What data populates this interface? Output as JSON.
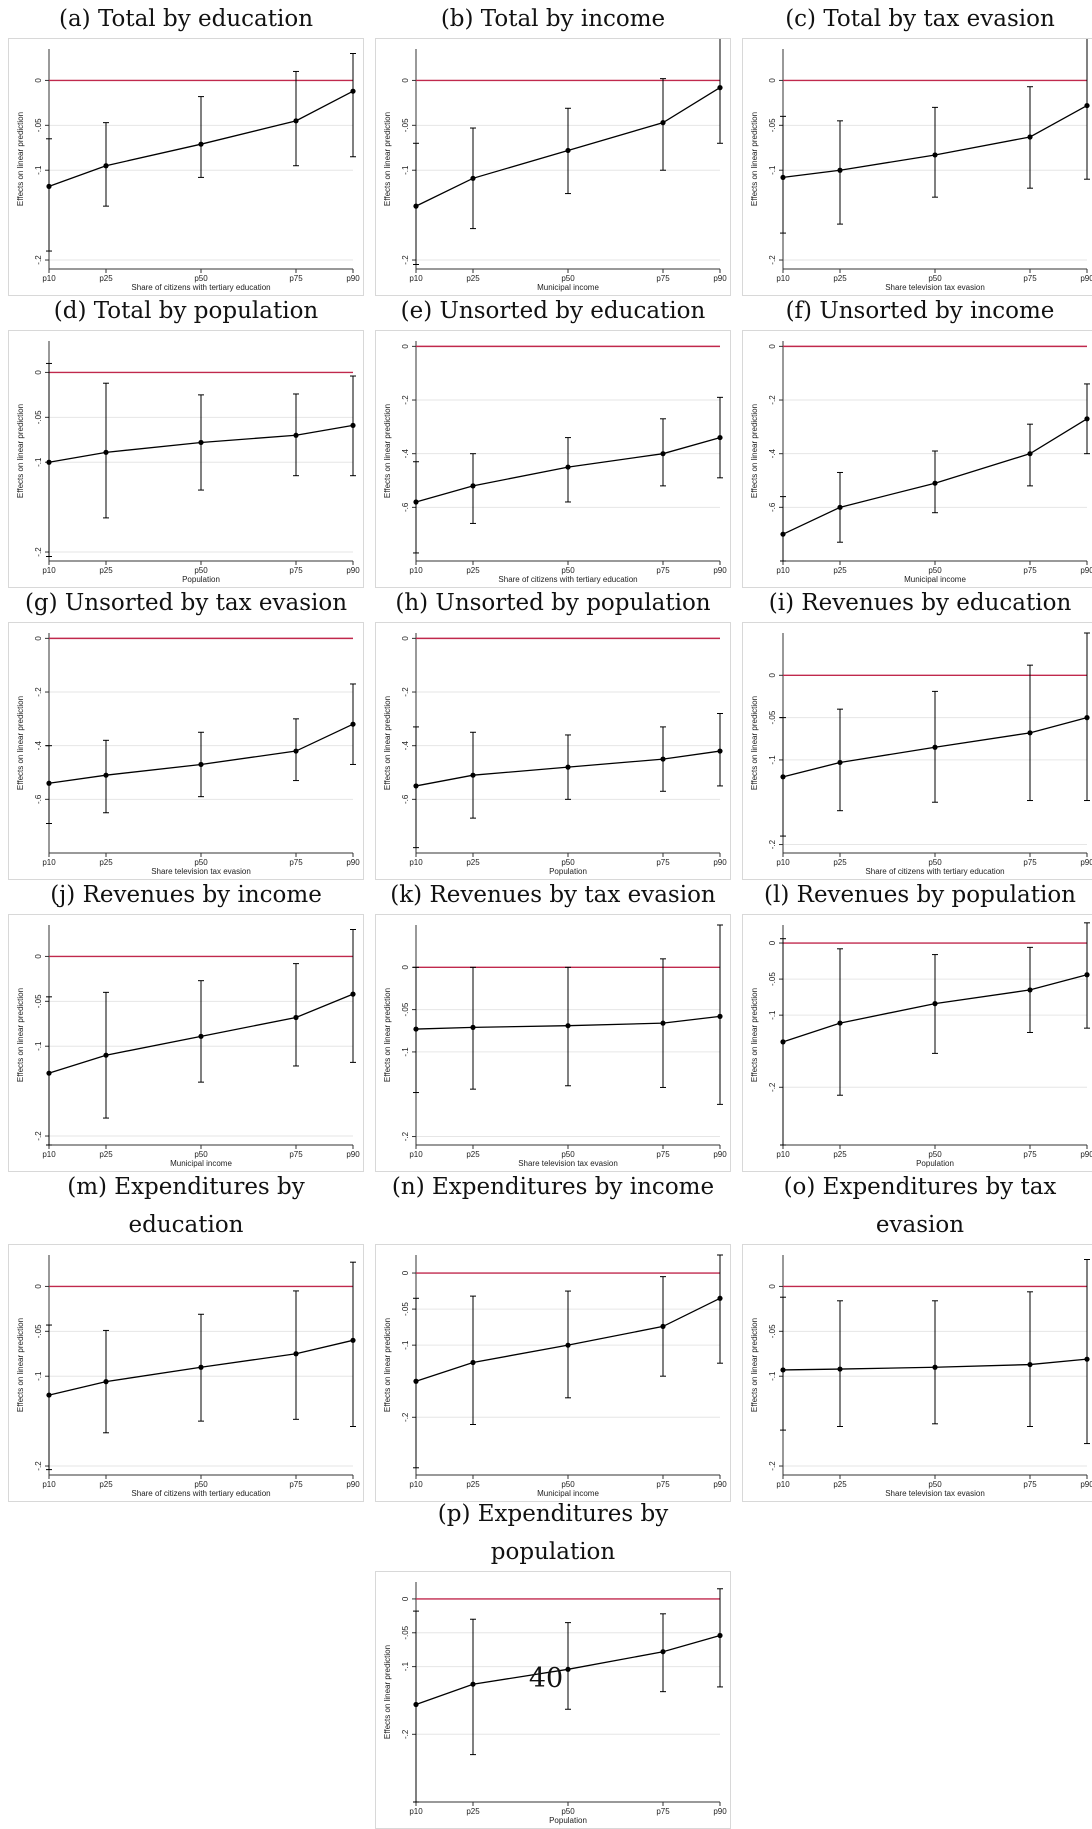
{
  "page_number": "40",
  "colors": {
    "reference_line": "#c0294d",
    "series": "#000000",
    "grid": "#e6e6e6",
    "frame_border": "#d8d8d8"
  },
  "chart_data": [
    {
      "type": "line",
      "caption_lines": [
        "(a) Total by education"
      ],
      "ylabel": "Effects on linear prediction",
      "xlabel": "Share of citizens with tertiary education",
      "x_ticks": [
        "p10",
        "p25",
        "p50",
        "p75",
        "p90"
      ],
      "y_ticks": [
        {
          "v": 0,
          "l": "0"
        },
        {
          "v": -0.05,
          "l": "-.05"
        },
        {
          "v": -0.1,
          "l": "-.1"
        },
        {
          "v": -0.2,
          "l": "-.2"
        }
      ],
      "ylim": [
        -0.21,
        0.035
      ],
      "points": [
        {
          "x": "p10",
          "y": -0.118,
          "lo": -0.19,
          "hi": -0.065
        },
        {
          "x": "p25",
          "y": -0.095,
          "lo": -0.14,
          "hi": -0.047
        },
        {
          "x": "p50",
          "y": -0.071,
          "lo": -0.108,
          "hi": -0.018
        },
        {
          "x": "p75",
          "y": -0.045,
          "lo": -0.095,
          "hi": 0.01
        },
        {
          "x": "p90",
          "y": -0.012,
          "lo": -0.085,
          "hi": 0.03
        }
      ]
    },
    {
      "type": "line",
      "caption_lines": [
        "(b) Total by income"
      ],
      "ylabel": "Effects on linear prediction",
      "xlabel": "Municipal income",
      "x_ticks": [
        "p10",
        "p25",
        "p50",
        "p75",
        "p90"
      ],
      "y_ticks": [
        {
          "v": 0,
          "l": "0"
        },
        {
          "v": -0.05,
          "l": "-.05"
        },
        {
          "v": -0.1,
          "l": "-.1"
        },
        {
          "v": -0.2,
          "l": "-.2"
        }
      ],
      "ylim": [
        -0.21,
        0.035
      ],
      "points": [
        {
          "x": "p10",
          "y": -0.14,
          "lo": -0.205,
          "hi": -0.07
        },
        {
          "x": "p25",
          "y": -0.109,
          "lo": -0.165,
          "hi": -0.053
        },
        {
          "x": "p50",
          "y": -0.078,
          "lo": -0.126,
          "hi": -0.031
        },
        {
          "x": "p75",
          "y": -0.047,
          "lo": -0.1,
          "hi": 0.002
        },
        {
          "x": "p90",
          "y": -0.008,
          "lo": -0.07,
          "hi": 0.055
        }
      ]
    },
    {
      "type": "line",
      "caption_lines": [
        "(c) Total by tax evasion"
      ],
      "ylabel": "Effects on linear prediction",
      "xlabel": "Share television tax evasion",
      "x_ticks": [
        "p10",
        "p25",
        "p50",
        "p75",
        "p90"
      ],
      "y_ticks": [
        {
          "v": 0,
          "l": "0"
        },
        {
          "v": -0.05,
          "l": "-.05"
        },
        {
          "v": -0.1,
          "l": "-.1"
        },
        {
          "v": -0.2,
          "l": "-.2"
        }
      ],
      "ylim": [
        -0.21,
        0.035
      ],
      "points": [
        {
          "x": "p10",
          "y": -0.108,
          "lo": -0.17,
          "hi": -0.04
        },
        {
          "x": "p25",
          "y": -0.1,
          "lo": -0.16,
          "hi": -0.045
        },
        {
          "x": "p50",
          "y": -0.083,
          "lo": -0.13,
          "hi": -0.03
        },
        {
          "x": "p75",
          "y": -0.063,
          "lo": -0.12,
          "hi": -0.007
        },
        {
          "x": "p90",
          "y": -0.028,
          "lo": -0.11,
          "hi": 0.05
        }
      ]
    },
    {
      "type": "line",
      "caption_lines": [
        "(d) Total by population"
      ],
      "ylabel": "Effects on linear prediction",
      "xlabel": "Population",
      "x_ticks": [
        "p10",
        "p25",
        "p50",
        "p75",
        "p90"
      ],
      "y_ticks": [
        {
          "v": 0,
          "l": "0"
        },
        {
          "v": -0.05,
          "l": "-.05"
        },
        {
          "v": -0.1,
          "l": "-.1"
        },
        {
          "v": -0.2,
          "l": "-.2"
        }
      ],
      "ylim": [
        -0.21,
        0.035
      ],
      "points": [
        {
          "x": "p10",
          "y": -0.1,
          "lo": -0.205,
          "hi": 0.01
        },
        {
          "x": "p25",
          "y": -0.089,
          "lo": -0.162,
          "hi": -0.012
        },
        {
          "x": "p50",
          "y": -0.078,
          "lo": -0.131,
          "hi": -0.025
        },
        {
          "x": "p75",
          "y": -0.07,
          "lo": -0.115,
          "hi": -0.024
        },
        {
          "x": "p90",
          "y": -0.059,
          "lo": -0.115,
          "hi": -0.004
        }
      ]
    },
    {
      "type": "line",
      "caption_lines": [
        "(e) Unsorted by education"
      ],
      "ylabel": "Effects on linear prediction",
      "xlabel": "Share of citizens with tertiary education",
      "x_ticks": [
        "p10",
        "p25",
        "p50",
        "p75",
        "p90"
      ],
      "y_ticks": [
        {
          "v": 0,
          "l": "0"
        },
        {
          "v": -0.2,
          "l": "-.2"
        },
        {
          "v": -0.4,
          "l": "-.4"
        },
        {
          "v": -0.6,
          "l": "-.6"
        }
      ],
      "ylim": [
        -0.8,
        0.02
      ],
      "points": [
        {
          "x": "p10",
          "y": -0.58,
          "lo": -0.77,
          "hi": -0.43
        },
        {
          "x": "p25",
          "y": -0.52,
          "lo": -0.66,
          "hi": -0.4
        },
        {
          "x": "p50",
          "y": -0.45,
          "lo": -0.58,
          "hi": -0.34
        },
        {
          "x": "p75",
          "y": -0.4,
          "lo": -0.52,
          "hi": -0.27
        },
        {
          "x": "p90",
          "y": -0.34,
          "lo": -0.49,
          "hi": -0.19
        }
      ]
    },
    {
      "type": "line",
      "caption_lines": [
        "(f) Unsorted by income"
      ],
      "ylabel": "Effects on linear prediction",
      "xlabel": "Municipal income",
      "x_ticks": [
        "p10",
        "p25",
        "p50",
        "p75",
        "p90"
      ],
      "y_ticks": [
        {
          "v": 0,
          "l": "0"
        },
        {
          "v": -0.2,
          "l": "-.2"
        },
        {
          "v": -0.4,
          "l": "-.4"
        },
        {
          "v": -0.6,
          "l": "-.6"
        }
      ],
      "ylim": [
        -0.8,
        0.02
      ],
      "points": [
        {
          "x": "p10",
          "y": -0.7,
          "lo": -0.8,
          "hi": -0.56
        },
        {
          "x": "p25",
          "y": -0.6,
          "lo": -0.73,
          "hi": -0.47
        },
        {
          "x": "p50",
          "y": -0.51,
          "lo": -0.62,
          "hi": -0.39
        },
        {
          "x": "p75",
          "y": -0.4,
          "lo": -0.52,
          "hi": -0.29
        },
        {
          "x": "p90",
          "y": -0.27,
          "lo": -0.4,
          "hi": -0.14
        }
      ]
    },
    {
      "type": "line",
      "caption_lines": [
        "(g) Unsorted by tax evasion"
      ],
      "ylabel": "Effects on linear prediction",
      "xlabel": "Share television tax evasion",
      "x_ticks": [
        "p10",
        "p25",
        "p50",
        "p75",
        "p90"
      ],
      "y_ticks": [
        {
          "v": 0,
          "l": "0"
        },
        {
          "v": -0.2,
          "l": "-.2"
        },
        {
          "v": -0.4,
          "l": "-.4"
        },
        {
          "v": -0.6,
          "l": "-.6"
        }
      ],
      "ylim": [
        -0.8,
        0.02
      ],
      "points": [
        {
          "x": "p10",
          "y": -0.54,
          "lo": -0.69,
          "hi": -0.4
        },
        {
          "x": "p25",
          "y": -0.51,
          "lo": -0.65,
          "hi": -0.38
        },
        {
          "x": "p50",
          "y": -0.47,
          "lo": -0.59,
          "hi": -0.35
        },
        {
          "x": "p75",
          "y": -0.42,
          "lo": -0.53,
          "hi": -0.3
        },
        {
          "x": "p90",
          "y": -0.32,
          "lo": -0.47,
          "hi": -0.17
        }
      ]
    },
    {
      "type": "line",
      "caption_lines": [
        "(h) Unsorted by population"
      ],
      "ylabel": "Effects on linear prediction",
      "xlabel": "Population",
      "x_ticks": [
        "p10",
        "p25",
        "p50",
        "p75",
        "p90"
      ],
      "y_ticks": [
        {
          "v": 0,
          "l": "0"
        },
        {
          "v": -0.2,
          "l": "-.2"
        },
        {
          "v": -0.4,
          "l": "-.4"
        },
        {
          "v": -0.6,
          "l": "-.6"
        }
      ],
      "ylim": [
        -0.8,
        0.02
      ],
      "points": [
        {
          "x": "p10",
          "y": -0.55,
          "lo": -0.78,
          "hi": -0.33
        },
        {
          "x": "p25",
          "y": -0.51,
          "lo": -0.67,
          "hi": -0.35
        },
        {
          "x": "p50",
          "y": -0.48,
          "lo": -0.6,
          "hi": -0.36
        },
        {
          "x": "p75",
          "y": -0.45,
          "lo": -0.57,
          "hi": -0.33
        },
        {
          "x": "p90",
          "y": -0.42,
          "lo": -0.55,
          "hi": -0.28
        }
      ]
    },
    {
      "type": "line",
      "caption_lines": [
        "(i) Revenues by education"
      ],
      "ylabel": "Effects on linear prediction",
      "xlabel": "Share of citizens with tertiary education",
      "x_ticks": [
        "p10",
        "p25",
        "p50",
        "p75",
        "p90"
      ],
      "y_ticks": [
        {
          "v": 0,
          "l": "0"
        },
        {
          "v": -0.05,
          "l": "-.05"
        },
        {
          "v": -0.1,
          "l": "-.1"
        },
        {
          "v": -0.2,
          "l": "-.2"
        }
      ],
      "ylim": [
        -0.21,
        0.05
      ],
      "points": [
        {
          "x": "p10",
          "y": -0.12,
          "lo": -0.19,
          "hi": -0.05
        },
        {
          "x": "p25",
          "y": -0.103,
          "lo": -0.16,
          "hi": -0.04
        },
        {
          "x": "p50",
          "y": -0.085,
          "lo": -0.15,
          "hi": -0.019
        },
        {
          "x": "p75",
          "y": -0.068,
          "lo": -0.148,
          "hi": 0.012
        },
        {
          "x": "p90",
          "y": -0.05,
          "lo": -0.148,
          "hi": 0.05
        }
      ]
    },
    {
      "type": "line",
      "caption_lines": [
        "(j) Revenues by income"
      ],
      "ylabel": "Effects on linear prediction",
      "xlabel": "Municipal income",
      "x_ticks": [
        "p10",
        "p25",
        "p50",
        "p75",
        "p90"
      ],
      "y_ticks": [
        {
          "v": 0,
          "l": "0"
        },
        {
          "v": -0.05,
          "l": "-.05"
        },
        {
          "v": -0.1,
          "l": "-.1"
        },
        {
          "v": -0.2,
          "l": "-.2"
        }
      ],
      "ylim": [
        -0.21,
        0.035
      ],
      "points": [
        {
          "x": "p10",
          "y": -0.13,
          "lo": -0.21,
          "hi": -0.045
        },
        {
          "x": "p25",
          "y": -0.11,
          "lo": -0.18,
          "hi": -0.04
        },
        {
          "x": "p50",
          "y": -0.089,
          "lo": -0.14,
          "hi": -0.027
        },
        {
          "x": "p75",
          "y": -0.068,
          "lo": -0.122,
          "hi": -0.008
        },
        {
          "x": "p90",
          "y": -0.042,
          "lo": -0.118,
          "hi": 0.03
        }
      ]
    },
    {
      "type": "line",
      "caption_lines": [
        "(k) Revenues by tax evasion"
      ],
      "ylabel": "Effects on linear prediction",
      "xlabel": "Share television tax evasion",
      "x_ticks": [
        "p10",
        "p25",
        "p50",
        "p75",
        "p90"
      ],
      "y_ticks": [
        {
          "v": 0,
          "l": "0"
        },
        {
          "v": -0.05,
          "l": "-.05"
        },
        {
          "v": -0.1,
          "l": "-.1"
        },
        {
          "v": -0.2,
          "l": "-.2"
        }
      ],
      "ylim": [
        -0.21,
        0.05
      ],
      "points": [
        {
          "x": "p10",
          "y": -0.073,
          "lo": -0.148,
          "hi": 0
        },
        {
          "x": "p25",
          "y": -0.071,
          "lo": -0.144,
          "hi": 0
        },
        {
          "x": "p50",
          "y": -0.069,
          "lo": -0.14,
          "hi": 0
        },
        {
          "x": "p75",
          "y": -0.066,
          "lo": -0.142,
          "hi": 0.01
        },
        {
          "x": "p90",
          "y": -0.058,
          "lo": -0.162,
          "hi": 0.05
        }
      ]
    },
    {
      "type": "line",
      "caption_lines": [
        "(l) Revenues by population"
      ],
      "ylabel": "Effects on linear prediction",
      "xlabel": "Population",
      "x_ticks": [
        "p10",
        "p25",
        "p50",
        "p75",
        "p90"
      ],
      "y_ticks": [
        {
          "v": 0,
          "l": "0"
        },
        {
          "v": -0.05,
          "l": "-.05"
        },
        {
          "v": -0.1,
          "l": "-.1"
        },
        {
          "v": -0.2,
          "l": "-.2"
        }
      ],
      "ylim": [
        -0.28,
        0.025
      ],
      "points": [
        {
          "x": "p10",
          "y": -0.137,
          "lo": -0.28,
          "hi": 0.006
        },
        {
          "x": "p25",
          "y": -0.111,
          "lo": -0.211,
          "hi": -0.008
        },
        {
          "x": "p50",
          "y": -0.084,
          "lo": -0.153,
          "hi": -0.016
        },
        {
          "x": "p75",
          "y": -0.065,
          "lo": -0.124,
          "hi": -0.006
        },
        {
          "x": "p90",
          "y": -0.044,
          "lo": -0.118,
          "hi": 0.028
        }
      ]
    },
    {
      "type": "line",
      "caption_lines": [
        "(m) Expenditures by",
        "education"
      ],
      "ylabel": "Effects on linear prediction",
      "xlabel": "Share of citizens with tertiary education",
      "x_ticks": [
        "p10",
        "p25",
        "p50",
        "p75",
        "p90"
      ],
      "y_ticks": [
        {
          "v": 0,
          "l": "0"
        },
        {
          "v": -0.05,
          "l": "-.05"
        },
        {
          "v": -0.1,
          "l": "-.1"
        },
        {
          "v": -0.2,
          "l": "-.2"
        }
      ],
      "ylim": [
        -0.21,
        0.035
      ],
      "points": [
        {
          "x": "p10",
          "y": -0.121,
          "lo": -0.204,
          "hi": -0.043
        },
        {
          "x": "p25",
          "y": -0.106,
          "lo": -0.163,
          "hi": -0.049
        },
        {
          "x": "p50",
          "y": -0.09,
          "lo": -0.15,
          "hi": -0.031
        },
        {
          "x": "p75",
          "y": -0.075,
          "lo": -0.148,
          "hi": -0.005
        },
        {
          "x": "p90",
          "y": -0.06,
          "lo": -0.156,
          "hi": 0.027
        }
      ]
    },
    {
      "type": "line",
      "caption_lines": [
        "(n) Expenditures by income"
      ],
      "ylabel": "Effects on linear prediction",
      "xlabel": "Municipal income",
      "x_ticks": [
        "p10",
        "p25",
        "p50",
        "p75",
        "p90"
      ],
      "y_ticks": [
        {
          "v": 0,
          "l": "0"
        },
        {
          "v": -0.05,
          "l": "-.05"
        },
        {
          "v": -0.1,
          "l": "-.1"
        },
        {
          "v": -0.2,
          "l": "-.2"
        }
      ],
      "ylim": [
        -0.28,
        0.025
      ],
      "points": [
        {
          "x": "p10",
          "y": -0.15,
          "lo": -0.27,
          "hi": -0.035
        },
        {
          "x": "p25",
          "y": -0.124,
          "lo": -0.21,
          "hi": -0.032
        },
        {
          "x": "p50",
          "y": -0.1,
          "lo": -0.173,
          "hi": -0.025
        },
        {
          "x": "p75",
          "y": -0.074,
          "lo": -0.143,
          "hi": -0.005
        },
        {
          "x": "p90",
          "y": -0.035,
          "lo": -0.125,
          "hi": 0.025
        }
      ]
    },
    {
      "type": "line",
      "caption_lines": [
        "(o) Expenditures by tax",
        "evasion"
      ],
      "ylabel": "Effects on linear prediction",
      "xlabel": "Share television tax evasion",
      "x_ticks": [
        "p10",
        "p25",
        "p50",
        "p75",
        "p90"
      ],
      "y_ticks": [
        {
          "v": 0,
          "l": "0"
        },
        {
          "v": -0.05,
          "l": "-.05"
        },
        {
          "v": -0.1,
          "l": "-.1"
        },
        {
          "v": -0.2,
          "l": "-.2"
        }
      ],
      "ylim": [
        -0.21,
        0.035
      ],
      "points": [
        {
          "x": "p10",
          "y": -0.093,
          "lo": -0.16,
          "hi": -0.012
        },
        {
          "x": "p25",
          "y": -0.092,
          "lo": -0.156,
          "hi": -0.016
        },
        {
          "x": "p50",
          "y": -0.09,
          "lo": -0.153,
          "hi": -0.016
        },
        {
          "x": "p75",
          "y": -0.087,
          "lo": -0.156,
          "hi": -0.006
        },
        {
          "x": "p90",
          "y": -0.081,
          "lo": -0.175,
          "hi": 0.03
        }
      ]
    },
    {
      "type": "line",
      "caption_lines": [
        "(p) Expenditures by",
        "population"
      ],
      "ylabel": "Effects on linear prediction",
      "xlabel": "Population",
      "x_ticks": [
        "p10",
        "p25",
        "p50",
        "p75",
        "p90"
      ],
      "y_ticks": [
        {
          "v": 0,
          "l": "0"
        },
        {
          "v": -0.05,
          "l": "-.05"
        },
        {
          "v": -0.1,
          "l": "-.1"
        },
        {
          "v": -0.2,
          "l": "-.2"
        }
      ],
      "ylim": [
        -0.3,
        0.025
      ],
      "points": [
        {
          "x": "p10",
          "y": -0.156,
          "lo": -0.3,
          "hi": -0.018
        },
        {
          "x": "p25",
          "y": -0.126,
          "lo": -0.23,
          "hi": -0.03
        },
        {
          "x": "p50",
          "y": -0.104,
          "lo": -0.163,
          "hi": -0.035
        },
        {
          "x": "p75",
          "y": -0.078,
          "lo": -0.137,
          "hi": -0.022
        },
        {
          "x": "p90",
          "y": -0.054,
          "lo": -0.13,
          "hi": 0.015
        }
      ]
    }
  ]
}
